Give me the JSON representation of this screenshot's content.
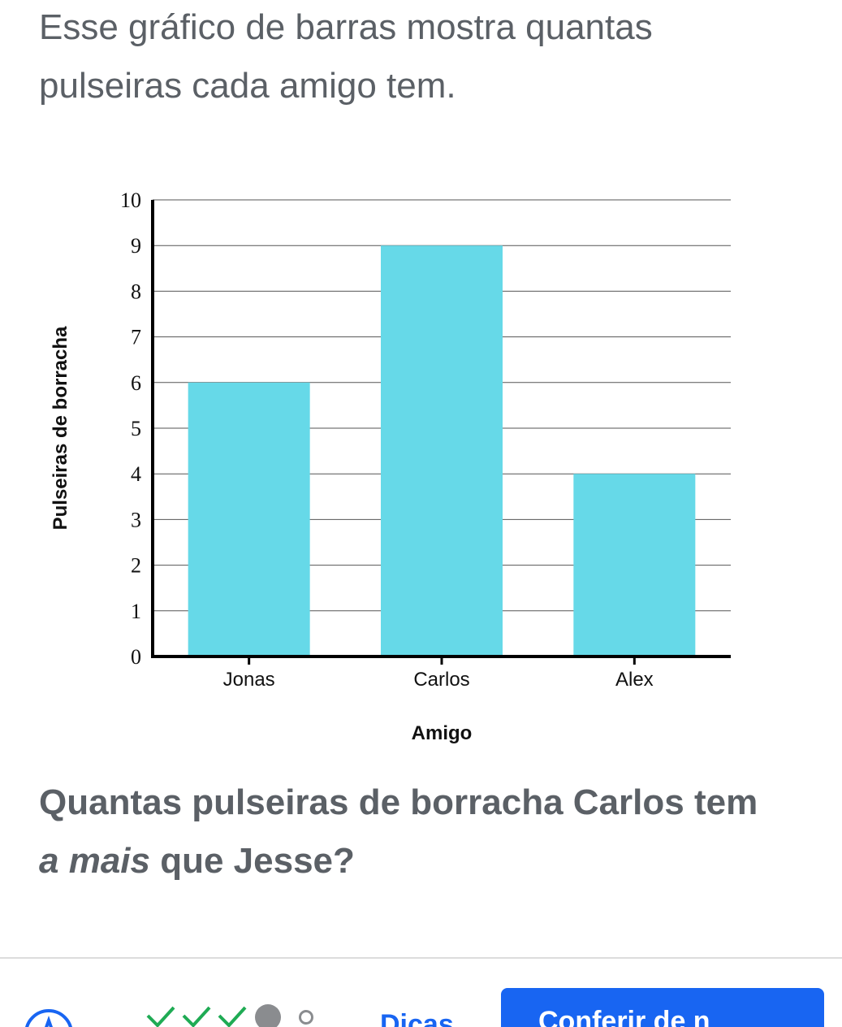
{
  "intro_text": "Esse gráfico de barras mostra quantas pulseiras cada amigo tem.",
  "question": {
    "before": "Quantas pulseiras de borracha Carlos tem ",
    "emphasis": "a mais",
    "after": " que Jesse?"
  },
  "chart_data": {
    "type": "bar",
    "categories": [
      "Jonas",
      "Carlos",
      "Alex"
    ],
    "values": [
      6,
      9,
      4
    ],
    "xlabel": "Amigo",
    "ylabel": "Pulseiras de borracha",
    "ylim": [
      0,
      10
    ],
    "yticks": [
      0,
      1,
      2,
      3,
      4,
      5,
      6,
      7,
      8,
      9,
      10
    ],
    "grid": true,
    "bar_color": "#66d9e8"
  },
  "footer": {
    "hints_label": "Dicas",
    "check_button_label": "Conferir de n"
  },
  "colors": {
    "accent": "#1865f2",
    "check_green": "#1fab54",
    "text": "#5b6066"
  }
}
